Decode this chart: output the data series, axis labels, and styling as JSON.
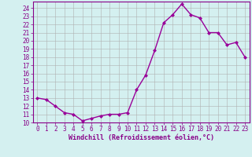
{
  "x": [
    0,
    1,
    2,
    3,
    4,
    5,
    6,
    7,
    8,
    9,
    10,
    11,
    12,
    13,
    14,
    15,
    16,
    17,
    18,
    19,
    20,
    21,
    22,
    23
  ],
  "y": [
    13.0,
    12.8,
    12.0,
    11.2,
    11.0,
    10.2,
    10.5,
    10.8,
    11.0,
    11.0,
    11.2,
    14.0,
    15.8,
    18.8,
    22.2,
    23.2,
    24.5,
    23.2,
    22.8,
    21.0,
    21.0,
    19.5,
    19.8,
    18.0
  ],
  "line_color": "#990099",
  "marker": "D",
  "marker_size": 2.0,
  "linewidth": 1.0,
  "xlabel": "Windchill (Refroidissement éolien,°C)",
  "xlabel_fontsize": 6.0,
  "ylabel_ticks": [
    10,
    11,
    12,
    13,
    14,
    15,
    16,
    17,
    18,
    19,
    20,
    21,
    22,
    23,
    24
  ],
  "xlim": [
    -0.5,
    23.5
  ],
  "ylim": [
    10,
    24.8
  ],
  "bg_color": "#d4f0f0",
  "grid_color": "#b0b0b0",
  "tick_color": "#880088",
  "tick_fontsize": 5.5,
  "spine_color": "#880088"
}
